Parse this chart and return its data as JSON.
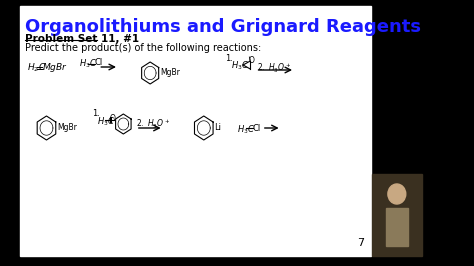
{
  "bg_color": "#000000",
  "slide_bg": "#ffffff",
  "title": "Organolithiums and Grignard Reagents",
  "title_color": "#1a1aff",
  "title_fontsize": 13,
  "subtitle": "Problem Set 11, #1",
  "body": "Predict the product(s) of the following reactions:",
  "page_number": "7"
}
